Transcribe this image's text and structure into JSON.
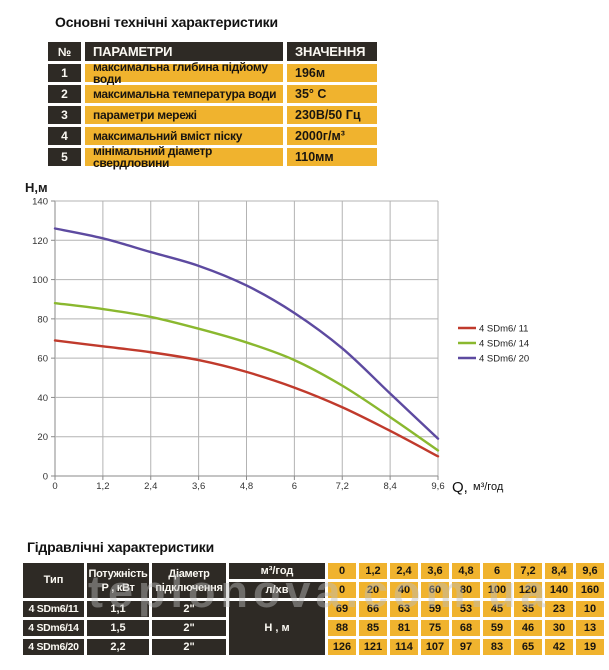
{
  "main_table": {
    "title": "Основні технічні характеристики",
    "headers": {
      "num": "№",
      "param": "ПАРАМЕТРИ",
      "value": "ЗНАЧЕННЯ"
    },
    "rows": [
      {
        "num": "1",
        "param": "максимальна глибина підйому води",
        "value": "196м"
      },
      {
        "num": "2",
        "param": "максимальна температура води",
        "value": "35° С"
      },
      {
        "num": "3",
        "param": "параметри мережі",
        "value": "230В/50 Гц"
      },
      {
        "num": "4",
        "param": "максимальний вміст піску",
        "value": "2000г/м³"
      },
      {
        "num": "5",
        "param": "мінімальний діаметр свердловини",
        "value": "110мм"
      }
    ]
  },
  "chart_data": {
    "type": "line",
    "x": [
      0,
      1.2,
      2.4,
      3.6,
      4.8,
      6,
      7.2,
      8.4,
      9.6
    ],
    "x_tick_labels": [
      "0",
      "1,2",
      "2,4",
      "3,6",
      "4,8",
      "6",
      "7,2",
      "8,4",
      "9,6"
    ],
    "y_ticks": [
      0,
      20,
      40,
      60,
      80,
      100,
      120,
      140
    ],
    "xlim": [
      0,
      9.6
    ],
    "ylim": [
      0,
      140
    ],
    "grid": true,
    "legend_position": "right",
    "ylabel": "Н,м",
    "xlabel_q": "Q,",
    "xlabel_unit": "м³/год",
    "series": [
      {
        "name": "4 SDm6/ 11",
        "color": "#c03a2c",
        "values": [
          69,
          66,
          63,
          59,
          53,
          45,
          35,
          23,
          10
        ]
      },
      {
        "name": "4 SDm6/ 14",
        "color": "#8ab82f",
        "values": [
          88,
          85,
          81,
          75,
          68,
          59,
          46,
          30,
          13
        ]
      },
      {
        "name": "4 SDm6/ 20",
        "color": "#5d4aa0",
        "values": [
          126,
          121,
          114,
          107,
          97,
          83,
          65,
          42,
          19
        ]
      }
    ]
  },
  "hydraulic_table": {
    "title": "Гідравлічні характеристики",
    "col_headers": {
      "type": "Тип",
      "power_1": "Потужність",
      "power_2": "Р , кВт",
      "diameter_1": "Діаметр",
      "diameter_2": "підключення"
    },
    "unit_rows": [
      {
        "label": "м³/год",
        "values": [
          "0",
          "1,2",
          "2,4",
          "3,6",
          "4,8",
          "6",
          "7,2",
          "8,4",
          "9,6"
        ]
      },
      {
        "label": "л/хв",
        "values": [
          "0",
          "20",
          "40",
          "60",
          "80",
          "100",
          "120",
          "140",
          "160"
        ]
      }
    ],
    "h_label": "Н , м",
    "rows": [
      {
        "type": "4 SDm6/11",
        "power": "1,1",
        "diameter": "2\"",
        "values": [
          "69",
          "66",
          "63",
          "59",
          "53",
          "45",
          "35",
          "23",
          "10"
        ]
      },
      {
        "type": "4 SDm6/14",
        "power": "1,5",
        "diameter": "2\"",
        "values": [
          "88",
          "85",
          "81",
          "75",
          "68",
          "59",
          "46",
          "30",
          "13"
        ]
      },
      {
        "type": "4 SDm6/20",
        "power": "2,2",
        "diameter": "2\"",
        "values": [
          "126",
          "121",
          "114",
          "107",
          "97",
          "83",
          "65",
          "42",
          "19"
        ]
      }
    ]
  },
  "watermark": "teplonova.com.ua",
  "colors": {
    "yellow": "#f0b32e",
    "dark": "#2e2a25",
    "grid": "#b3b3b3",
    "axis": "#8a8a8a",
    "red": "#c03a2c",
    "green": "#8ab82f",
    "purple": "#5d4aa0"
  }
}
